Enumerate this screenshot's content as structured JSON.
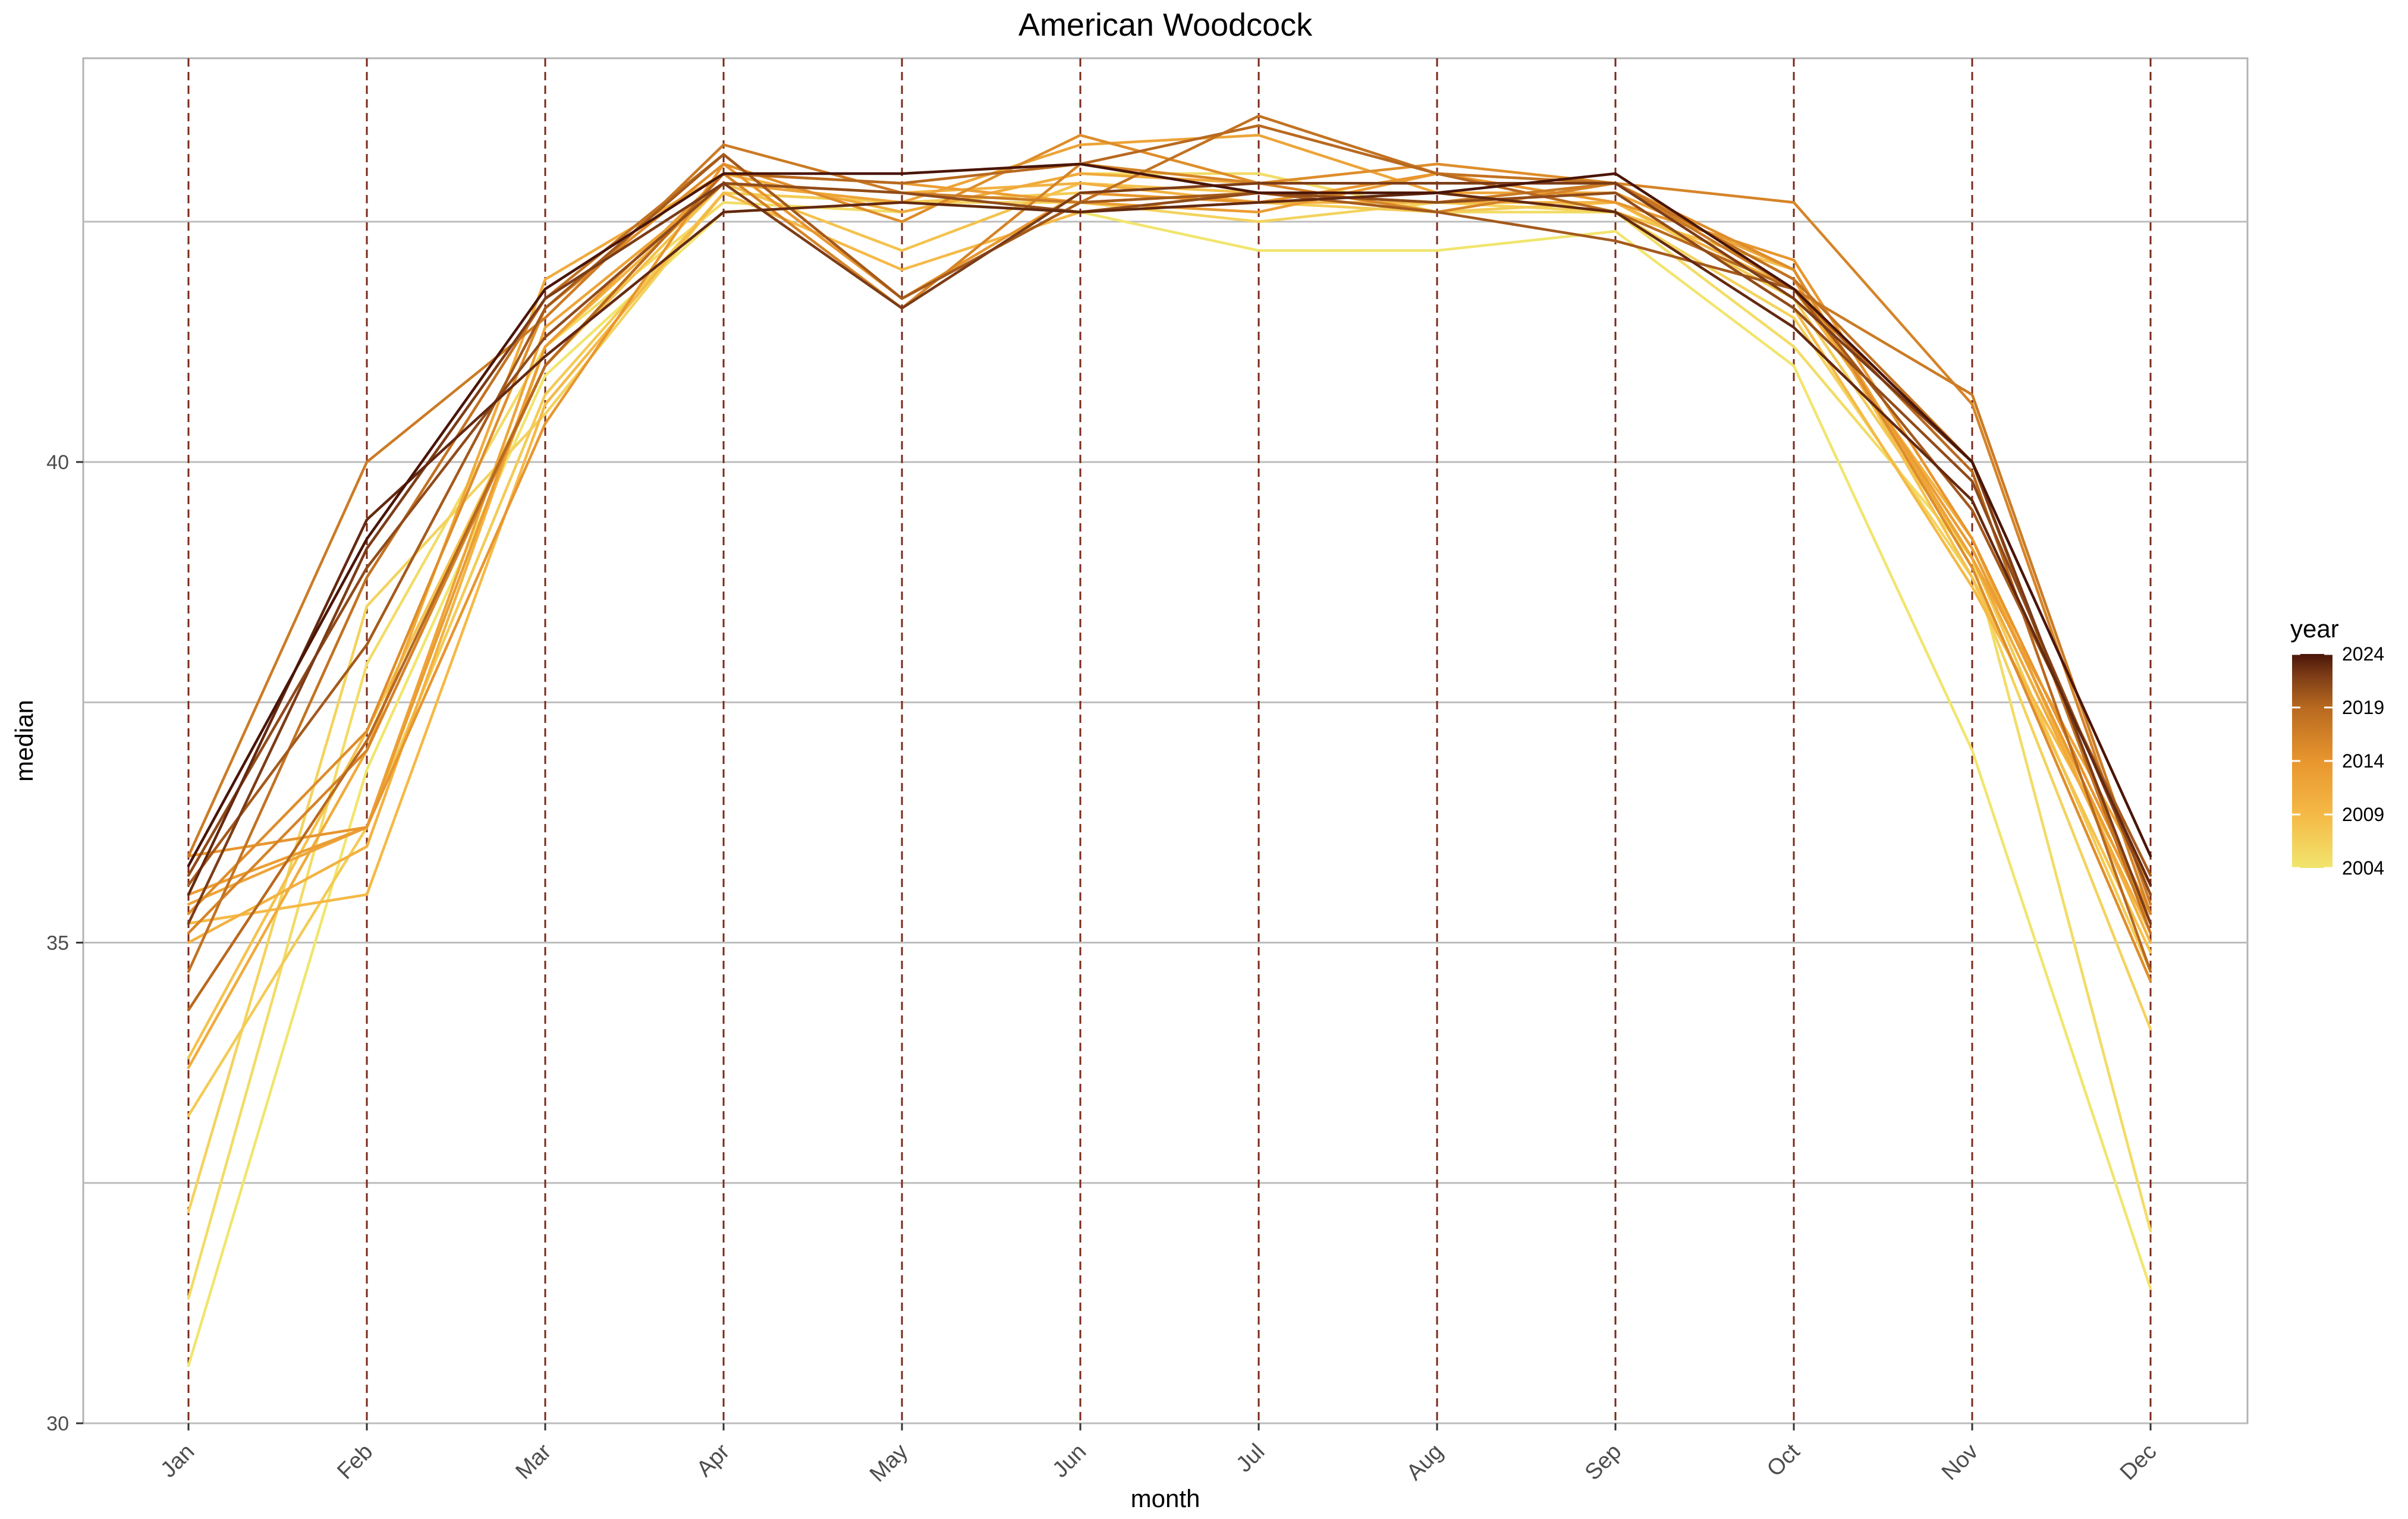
{
  "chart_data": {
    "type": "line",
    "title": "American Woodcock",
    "xlabel": "month",
    "ylabel": "median",
    "categories": [
      "Jan",
      "Feb",
      "Mar",
      "Apr",
      "May",
      "Jun",
      "Jul",
      "Aug",
      "Sep",
      "Oct",
      "Nov",
      "Dec"
    ],
    "ylim": [
      30,
      44.2
    ],
    "y_ticks": [
      30,
      35,
      40
    ],
    "y_tick_labels": [
      "30",
      "35",
      "40"
    ],
    "y_minor_grid": [
      32.5,
      37.5,
      42.5
    ],
    "grid": true,
    "month_reference_lines": "dashed vertical line at every month",
    "legend": {
      "title": "year",
      "position": "right",
      "type": "colorbar",
      "range": [
        2004,
        2024
      ],
      "ticks": [
        2004,
        2009,
        2014,
        2019,
        2024
      ],
      "tick_labels": [
        "2004",
        "2009",
        "2014",
        "2019",
        "2024"
      ]
    },
    "color_scale": [
      "#f1e56e",
      "#f5b946",
      "#e8962e",
      "#b8691f",
      "#7c3c17",
      "#4a1508"
    ],
    "reference_line_color": "#7a2a1a",
    "series": [
      {
        "year": 2004,
        "values": [
          30.6,
          36.8,
          40.9,
          42.6,
          42.7,
          42.6,
          42.2,
          42.2,
          42.4,
          41.0,
          37.0,
          31.4
        ]
      },
      {
        "year": 2005,
        "values": [
          31.3,
          37.9,
          41.2,
          42.7,
          42.6,
          43.0,
          43.0,
          42.6,
          42.6,
          41.2,
          39.0,
          32.0
        ]
      },
      {
        "year": 2006,
        "values": [
          32.2,
          38.5,
          40.5,
          42.8,
          42.7,
          42.7,
          42.5,
          42.7,
          42.6,
          41.5,
          38.8,
          34.1
        ]
      },
      {
        "year": 2007,
        "values": [
          33.2,
          36.2,
          40.7,
          42.8,
          42.7,
          42.8,
          42.7,
          42.6,
          42.7,
          41.7,
          39.0,
          34.7
        ]
      },
      {
        "year": 2008,
        "values": [
          33.8,
          37.2,
          41.0,
          42.9,
          42.2,
          42.9,
          42.8,
          42.8,
          42.6,
          42.0,
          38.8,
          34.9
        ]
      },
      {
        "year": 2009,
        "values": [
          35.2,
          35.5,
          40.6,
          42.8,
          42.0,
          42.6,
          42.8,
          42.7,
          42.8,
          41.6,
          38.7,
          35.3
        ]
      },
      {
        "year": 2010,
        "values": [
          35.0,
          36.0,
          41.2,
          42.9,
          42.8,
          42.9,
          42.7,
          42.7,
          42.7,
          41.8,
          39.2,
          35.0
        ]
      },
      {
        "year": 2011,
        "values": [
          33.7,
          37.0,
          41.9,
          43.0,
          42.6,
          43.0,
          42.9,
          42.9,
          42.9,
          41.9,
          39.0,
          35.1
        ]
      },
      {
        "year": 2012,
        "values": [
          35.4,
          36.2,
          41.4,
          42.9,
          42.7,
          43.3,
          43.4,
          42.8,
          42.8,
          42.0,
          39.0,
          35.6
        ]
      },
      {
        "year": 2013,
        "values": [
          35.5,
          36.2,
          41.2,
          43.0,
          42.9,
          42.7,
          42.6,
          43.0,
          42.9,
          41.9,
          39.1,
          35.2
        ]
      },
      {
        "year": 2014,
        "values": [
          35.9,
          36.2,
          40.4,
          43.1,
          41.7,
          42.8,
          42.7,
          43.0,
          42.7,
          42.1,
          39.2,
          35.3
        ]
      },
      {
        "year": 2015,
        "values": [
          35.3,
          37.2,
          41.6,
          43.1,
          42.5,
          43.4,
          42.9,
          43.1,
          42.9,
          42.0,
          38.9,
          34.6
        ]
      },
      {
        "year": 2016,
        "values": [
          35.1,
          37.0,
          41.0,
          43.0,
          41.6,
          43.1,
          42.9,
          42.6,
          42.9,
          42.7,
          40.6,
          35.3
        ]
      },
      {
        "year": 2017,
        "values": [
          35.9,
          40.0,
          41.5,
          43.3,
          42.8,
          42.7,
          42.8,
          42.7,
          42.9,
          41.8,
          40.7,
          35.4
        ]
      },
      {
        "year": 2018,
        "values": [
          34.7,
          38.8,
          41.7,
          43.2,
          41.7,
          42.7,
          43.6,
          43.0,
          42.9,
          41.9,
          40.0,
          35.1
        ]
      },
      {
        "year": 2019,
        "values": [
          34.3,
          37.1,
          41.0,
          43.0,
          42.9,
          43.1,
          43.5,
          43.0,
          42.6,
          41.8,
          39.9,
          34.7
        ]
      },
      {
        "year": 2020,
        "values": [
          35.6,
          38.1,
          41.6,
          43.2,
          41.7,
          42.7,
          42.8,
          42.6,
          42.3,
          41.8,
          39.5,
          35.7
        ]
      },
      {
        "year": 2021,
        "values": [
          35.7,
          38.9,
          41.3,
          42.9,
          42.8,
          42.6,
          42.8,
          42.7,
          42.8,
          41.6,
          39.8,
          35.5
        ]
      },
      {
        "year": 2022,
        "values": [
          35.2,
          39.1,
          41.7,
          42.9,
          41.6,
          42.8,
          42.9,
          42.9,
          42.9,
          41.7,
          40.0,
          35.2
        ]
      },
      {
        "year": 2023,
        "values": [
          35.5,
          39.4,
          41.1,
          42.6,
          42.7,
          42.6,
          42.7,
          42.8,
          42.6,
          41.4,
          39.6,
          35.6
        ]
      },
      {
        "year": 2024,
        "values": [
          35.8,
          39.2,
          41.8,
          43.0,
          43.0,
          43.1,
          42.8,
          42.8,
          43.0,
          41.8,
          40.0,
          35.9
        ]
      }
    ]
  }
}
